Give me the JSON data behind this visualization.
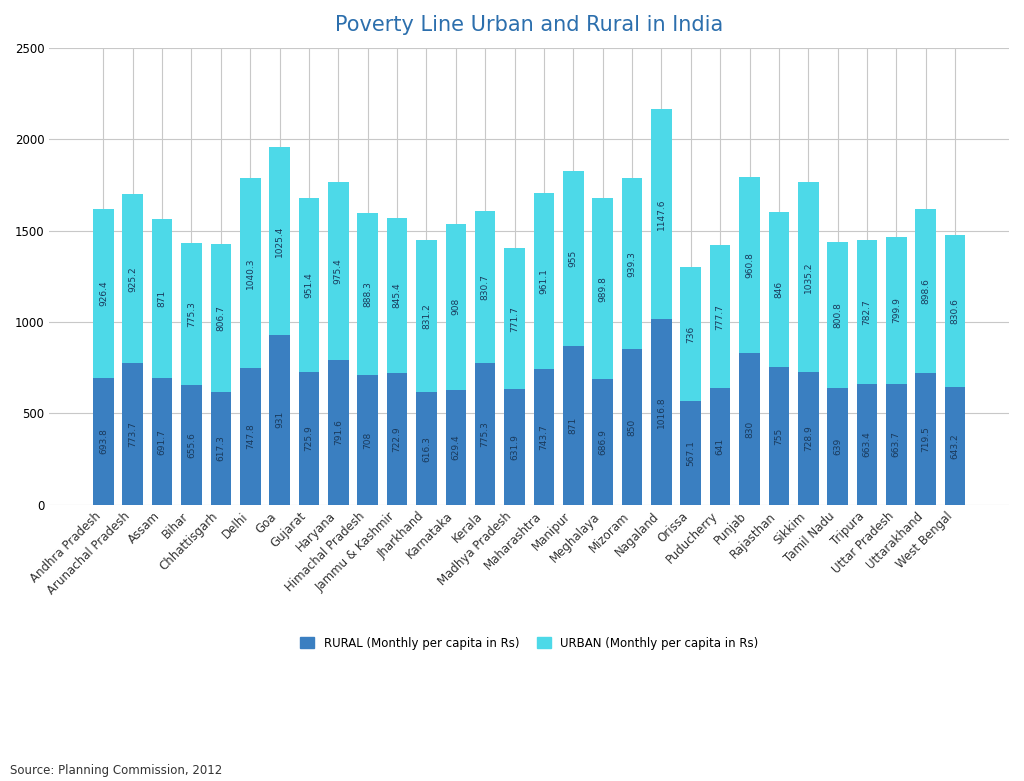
{
  "title": "Poverty Line Urban and Rural in India",
  "source": "Source: Planning Commission, 2012",
  "categories": [
    "Andhra Pradesh",
    "Arunachal Pradesh",
    "Assam",
    "Bihar",
    "Chhattisgarh",
    "Delhi",
    "Goa",
    "Gujarat",
    "Haryana",
    "Himachal Pradesh",
    "Jammu & Kashmir",
    "Jharkhand",
    "Karnataka",
    "Kerala",
    "Madhya Pradesh",
    "Maharashtra",
    "Manipur",
    "Meghalaya",
    "Mizoram",
    "Nagaland",
    "Orissa",
    "Puducherry",
    "Punjab",
    "Rajasthan",
    "Sikkim",
    "Tamil Nadu",
    "Tripura",
    "Uttar Pradesh",
    "Uttarakhand",
    "West Bengal"
  ],
  "rural": [
    693.8,
    773.7,
    691.7,
    655.6,
    617.3,
    747.8,
    931,
    725.9,
    791.6,
    708,
    722.9,
    616.3,
    629.4,
    775.3,
    631.9,
    743.7,
    871,
    686.9,
    850,
    1016.8,
    567.1,
    641,
    830,
    755,
    728.9,
    639,
    663.4,
    663.7,
    719.5,
    643.2
  ],
  "urban": [
    926.4,
    925.2,
    871,
    775.3,
    806.7,
    1040.3,
    1025.4,
    951.4,
    975.4,
    888.3,
    845.4,
    831.2,
    908,
    830.7,
    771.7,
    961.1,
    955,
    989.8,
    939.3,
    1147.6,
    736,
    777.7,
    960.8,
    846,
    1035.2,
    800.8,
    782.7,
    799.9,
    898.6,
    830.6
  ],
  "rural_color": "#3a7fc1",
  "urban_color": "#4dd9e8",
  "background_color": "#ffffff",
  "ylim": [
    0,
    2500
  ],
  "yticks": [
    0,
    500,
    1000,
    1500,
    2000,
    2500
  ],
  "title_fontsize": 15,
  "tick_fontsize": 8.5,
  "bar_label_fontsize": 6.5,
  "bar_label_color": "#1a3a5c",
  "legend_rural": "RURAL (Monthly per capita in Rs)",
  "legend_urban": "URBAN (Monthly per capita in Rs)"
}
